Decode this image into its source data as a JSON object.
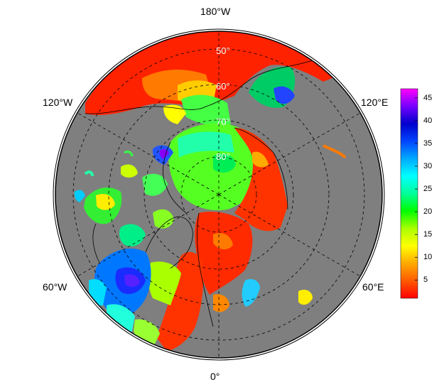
{
  "map": {
    "projection": "north polar stereographic",
    "longitude_labels": {
      "top": "180°W",
      "bottom": "0°",
      "upper_left": "120°W",
      "upper_right": "120°E",
      "lower_left": "60°W",
      "lower_right": "60°E"
    },
    "latitude_labels": [
      "50°",
      "60°",
      "70°",
      "80°"
    ],
    "colors": {
      "land": "#7f7f7f",
      "background": "#ffffff",
      "grid": "#000000"
    }
  },
  "colorbar": {
    "tick_labels": [
      "45",
      "40",
      "35",
      "30",
      "25",
      "20",
      "15",
      "10",
      "5"
    ],
    "range": [
      1,
      47
    ],
    "stops": [
      "#ff0000",
      "#ff5a00",
      "#ffaa00",
      "#ffff00",
      "#aaff00",
      "#00ff00",
      "#00ff99",
      "#00ffff",
      "#00aaff",
      "#0044ff",
      "#0000cc",
      "#7700ff",
      "#ff00ff"
    ]
  }
}
